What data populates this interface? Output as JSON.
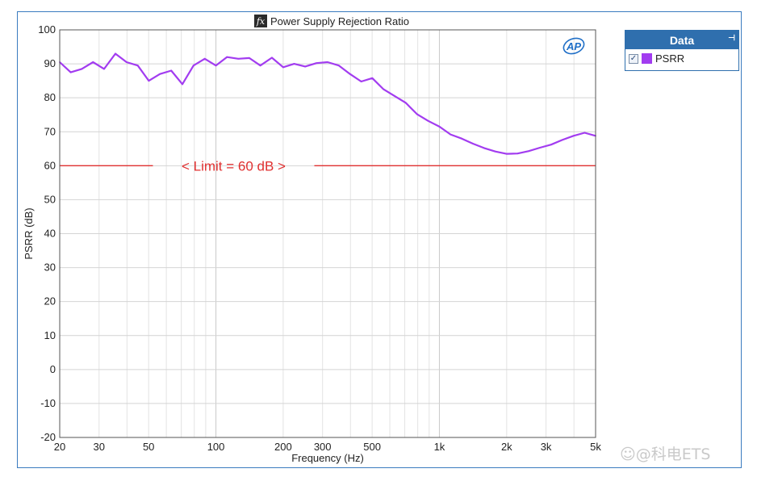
{
  "chart_data": {
    "type": "line",
    "title": "Power Supply Rejection Ratio",
    "xlabel": "Frequency (Hz)",
    "ylabel": "PSRR (dB)",
    "xscale": "log",
    "xlim": [
      20,
      5000
    ],
    "ylim": [
      -20,
      100
    ],
    "x_ticks": [
      20,
      30,
      50,
      100,
      200,
      300,
      500,
      1000,
      2000,
      3000,
      5000
    ],
    "x_tick_labels": [
      "20",
      "30",
      "50",
      "100",
      "200",
      "300",
      "500",
      "1k",
      "2k",
      "3k",
      "5k"
    ],
    "y_ticks": [
      -20,
      -10,
      0,
      10,
      20,
      30,
      40,
      50,
      60,
      70,
      80,
      90,
      100
    ],
    "y_tick_labels": [
      "-20",
      "-10",
      "0",
      "10",
      "20",
      "30",
      "40",
      "50",
      "60",
      "70",
      "80",
      "90",
      "100"
    ],
    "grid": true,
    "legend_position": "right, outside plot",
    "series": [
      {
        "name": "PSRR",
        "color": "#a23cf0",
        "x": [
          20,
          22.4,
          25.1,
          28.2,
          31.6,
          35.5,
          39.8,
          44.7,
          50.1,
          56.2,
          63.1,
          70.8,
          79.4,
          89.1,
          100,
          112,
          126,
          141,
          158,
          178,
          200,
          224,
          251,
          282,
          316,
          355,
          398,
          447,
          501,
          562,
          631,
          708,
          794,
          891,
          1000,
          1122,
          1259,
          1413,
          1585,
          1778,
          1995,
          2239,
          2512,
          2818,
          3162,
          3548,
          3981,
          4467,
          5000
        ],
        "y": [
          90.5,
          87.5,
          88.5,
          90.5,
          88.5,
          93.0,
          90.5,
          89.5,
          85.0,
          87.0,
          88.0,
          84.0,
          89.5,
          91.5,
          89.5,
          92.0,
          91.5,
          91.7,
          89.5,
          91.8,
          89.0,
          90.0,
          89.2,
          90.2,
          90.5,
          89.5,
          87.0,
          84.8,
          85.8,
          82.5,
          80.5,
          78.5,
          75.2,
          73.2,
          71.5,
          69.2,
          68.0,
          66.5,
          65.2,
          64.2,
          63.5,
          63.6,
          64.3,
          65.3,
          66.2,
          67.6,
          68.8,
          69.7,
          68.8
        ]
      }
    ],
    "annotations": [
      {
        "type": "hline",
        "y": 60,
        "color": "#e03030",
        "label": "< Limit = 60 dB >",
        "label_x": 120
      }
    ]
  },
  "legend": {
    "header": "Data",
    "pin_icon": "pin-icon",
    "items": [
      {
        "label": "PSRR",
        "checked": true,
        "check_mark": "✓",
        "color": "#a23cf0"
      }
    ]
  },
  "logo": {
    "text": "AP"
  },
  "title_icon": {
    "name": "fx-icon",
    "text": "fx"
  },
  "watermark": "☺@科电ETS"
}
